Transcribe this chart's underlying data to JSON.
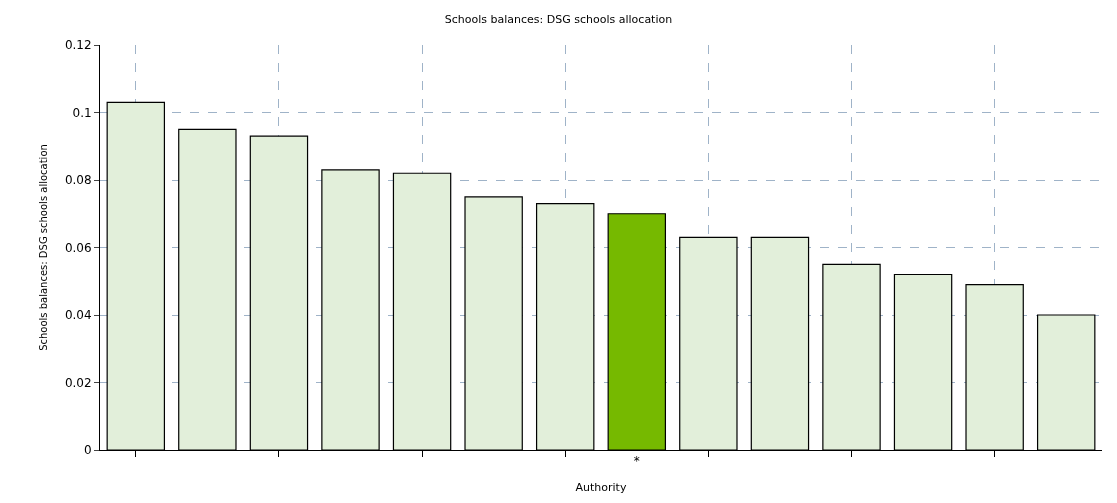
{
  "chart_data": {
    "type": "bar",
    "title": "Schools balances: DSG schools allocation",
    "xlabel": "Authority",
    "ylabel": "Schools balances: DSG schools allocation",
    "categories": [
      null,
      null,
      null,
      null,
      null,
      null,
      null,
      "*",
      null,
      null,
      null,
      null,
      null,
      null
    ],
    "values": [
      0.103,
      0.095,
      0.093,
      0.083,
      0.082,
      0.075,
      0.073,
      0.07,
      0.063,
      0.063,
      0.055,
      0.052,
      0.049,
      0.04
    ],
    "colors": [
      "#e2efda",
      "#e2efda",
      "#e2efda",
      "#e2efda",
      "#e2efda",
      "#e2efda",
      "#e2efda",
      "#76b900",
      "#e2efda",
      "#e2efda",
      "#e2efda",
      "#e2efda",
      "#e2efda",
      "#e2efda"
    ],
    "ylim": [
      0,
      0.12
    ],
    "yticks": [
      0,
      0.02,
      0.04,
      0.06,
      0.08,
      0.1,
      0.12
    ],
    "grid": true
  }
}
